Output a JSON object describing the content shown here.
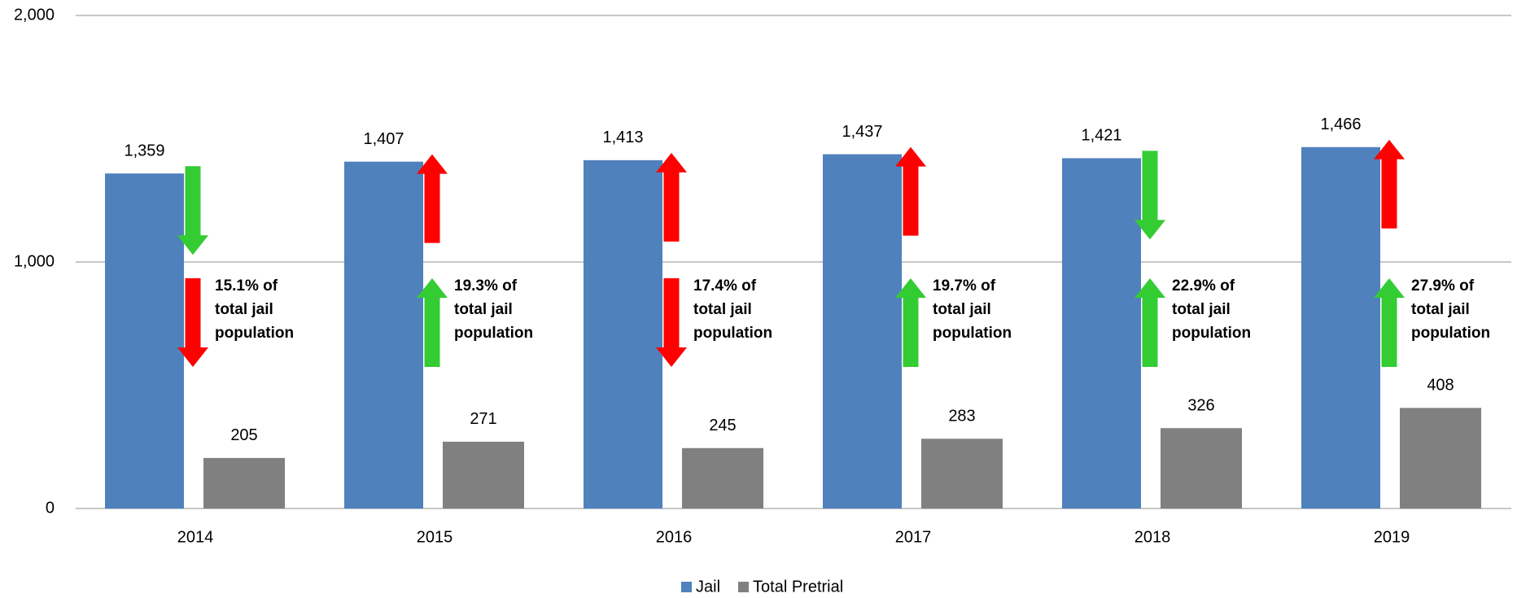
{
  "chart_data": {
    "type": "bar",
    "categories": [
      "2014",
      "2015",
      "2016",
      "2017",
      "2018",
      "2019"
    ],
    "series": [
      {
        "name": "Jail",
        "color": "#4f81bd",
        "values": [
          1359,
          1407,
          1413,
          1437,
          1421,
          1466
        ],
        "value_labels": [
          "1,359",
          "1,407",
          "1,413",
          "1,437",
          "1,421",
          "1,466"
        ]
      },
      {
        "name": "Total Pretrial",
        "color": "#808080",
        "values": [
          205,
          271,
          245,
          283,
          326,
          408
        ]
      }
    ],
    "ylim": [
      0,
      2000
    ],
    "yticks": [
      0,
      {
        "value": 1000,
        "label": "1,000"
      },
      {
        "value": 2000,
        "label": "2,000"
      }
    ],
    "grid": true,
    "legend": "bottom",
    "annotations": [
      [
        "15.1% of",
        "total jail",
        "population"
      ],
      [
        "19.3% of",
        "total jail",
        "population"
      ],
      [
        "17.4% of",
        "total jail",
        "population"
      ],
      [
        "19.7% of",
        "total jail",
        "population"
      ],
      [
        "22.9% of",
        "total jail",
        "population"
      ],
      [
        "27.9% of",
        "total jail",
        "population"
      ]
    ]
  }
}
